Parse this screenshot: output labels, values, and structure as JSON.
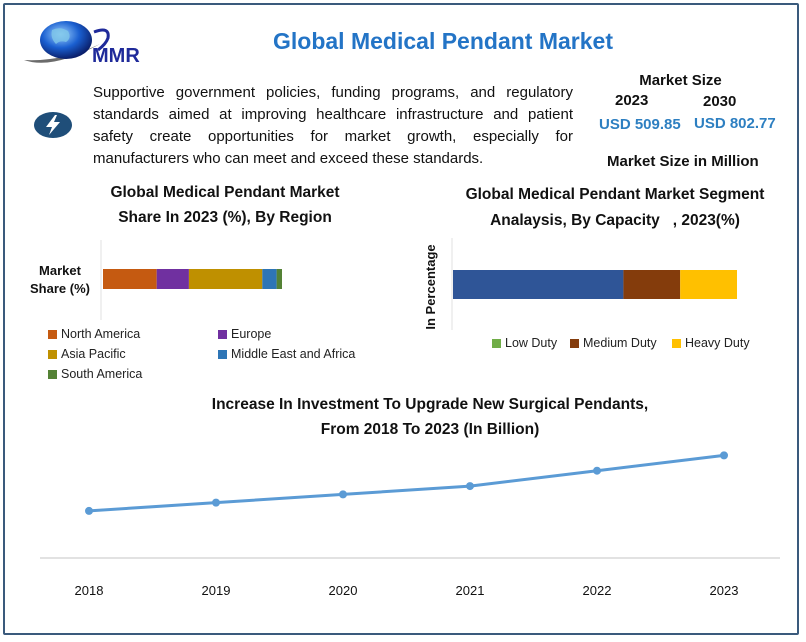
{
  "header": {
    "brand": "MMR",
    "title": "Global Medical Pendant Market"
  },
  "description": "Supportive government policies, funding programs, and regulatory standards aimed at improving healthcare infrastructure and patient safety create opportunities for market growth, especially for manufacturers who can meet and exceed these standards.",
  "icons": {
    "logo": "globe-logo-icon",
    "highlight": "lightning-bolt-icon"
  },
  "market_size": {
    "heading": "Market Size",
    "year_start": "2023",
    "year_end": "2030",
    "value_start": "USD 509.85",
    "value_end": "USD 802.77",
    "unit_note": "Market Size in Million"
  },
  "colors": {
    "title_blue": "#2374c6",
    "value_blue": "#2d7fc1",
    "frame": "#3a5a7c"
  },
  "chart_data": [
    {
      "type": "bar",
      "stacked": true,
      "orientation": "horizontal",
      "title": "Global Medical Pendant Market Share In 2023 (%), By Region",
      "title_lines": [
        "Global Medical Pendant Market",
        "Share In 2023 (%), By Region"
      ],
      "ylabel": "Market Share (%)",
      "ylabel_lines": [
        "Market",
        "Share (%)"
      ],
      "categories": [
        "Market Share (%)"
      ],
      "series": [
        {
          "name": "North America",
          "values": [
            30
          ],
          "color": "#c55a11"
        },
        {
          "name": "Europe",
          "values": [
            18
          ],
          "color": "#7030a0"
        },
        {
          "name": "Asia Pacific",
          "values": [
            41
          ],
          "color": "#bf9000"
        },
        {
          "name": "Middle East and Africa",
          "values": [
            8
          ],
          "color": "#2e75b6"
        },
        {
          "name": "South America",
          "values": [
            3
          ],
          "color": "#548235"
        }
      ],
      "xlim": [
        0,
        100
      ],
      "legend": "bottom"
    },
    {
      "type": "bar",
      "stacked": true,
      "orientation": "horizontal",
      "title": "Global Medical Pendant Market Segment Analaysis, By Capacity , 2023(%)",
      "title_lines": [
        "Global Medical Pendant Market Segment",
        "Analaysis, By Capacity   , 2023(%)"
      ],
      "ylabel": "In Percentage",
      "categories": [
        "2023"
      ],
      "series": [
        {
          "name": "Low Duty",
          "values": [
            60
          ],
          "color": "#2f5597",
          "legend_color": "#70ad47"
        },
        {
          "name": "Medium Duty",
          "values": [
            20
          ],
          "color": "#843c0c"
        },
        {
          "name": "Heavy Duty",
          "values": [
            20
          ],
          "color": "#ffc000"
        }
      ],
      "xlim": [
        0,
        100
      ],
      "legend": "bottom"
    },
    {
      "type": "line",
      "title": "Increase In Investment To Upgrade New Surgical Pendants, From 2018 To 2023 (In Billion)",
      "title_lines": [
        "Increase In Investment To Upgrade New Surgical Pendants,",
        "From 2018 To 2023 (In Billion)"
      ],
      "x": [
        "2018",
        "2019",
        "2020",
        "2021",
        "2022",
        "2023"
      ],
      "series": [
        {
          "name": "Investment",
          "values": [
            1.0,
            1.07,
            1.14,
            1.21,
            1.34,
            1.47
          ],
          "color": "#5b9bd5"
        }
      ],
      "ylim": [
        0.5,
        1.6
      ],
      "grid": false,
      "xlabel": "",
      "ylabel": ""
    }
  ]
}
